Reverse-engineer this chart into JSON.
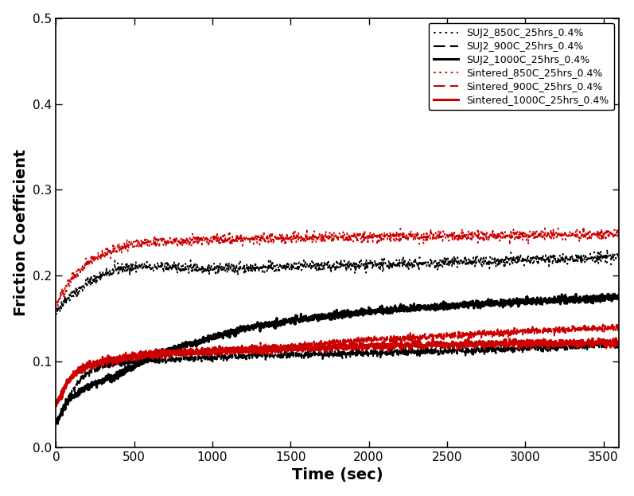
{
  "xlabel": "Time (sec)",
  "ylabel": "Friction Coefficient",
  "xlim": [
    0,
    3600
  ],
  "ylim": [
    0.0,
    0.5
  ],
  "xticks": [
    0,
    500,
    1000,
    1500,
    2000,
    2500,
    3000,
    3500
  ],
  "yticks": [
    0.0,
    0.1,
    0.2,
    0.3,
    0.4,
    0.5
  ],
  "legend_fontsize": 9,
  "axis_fontsize": 14,
  "tick_fontsize": 11,
  "background_color": "#ffffff",
  "series": [
    {
      "label": "SUJ2_850C_25hrs_0.4%",
      "color": "#000000",
      "linestyle": "dotted",
      "linewidth": 1.3,
      "points": [
        [
          0,
          0.155
        ],
        [
          30,
          0.165
        ],
        [
          60,
          0.172
        ],
        [
          100,
          0.178
        ],
        [
          150,
          0.183
        ],
        [
          200,
          0.192
        ],
        [
          300,
          0.2
        ],
        [
          400,
          0.208
        ],
        [
          500,
          0.21
        ],
        [
          700,
          0.21
        ],
        [
          1000,
          0.208
        ],
        [
          1500,
          0.21
        ],
        [
          2000,
          0.212
        ],
        [
          2500,
          0.215
        ],
        [
          3000,
          0.218
        ],
        [
          3600,
          0.222
        ]
      ],
      "noise": 0.003
    },
    {
      "label": "SUJ2_900C_25hrs_0.4%",
      "color": "#000000",
      "linestyle": "dashed",
      "linewidth": 1.5,
      "points": [
        [
          0,
          0.03
        ],
        [
          30,
          0.038
        ],
        [
          60,
          0.05
        ],
        [
          100,
          0.065
        ],
        [
          150,
          0.078
        ],
        [
          200,
          0.087
        ],
        [
          300,
          0.095
        ],
        [
          400,
          0.098
        ],
        [
          500,
          0.1
        ],
        [
          700,
          0.102
        ],
        [
          1000,
          0.105
        ],
        [
          1500,
          0.108
        ],
        [
          2000,
          0.11
        ],
        [
          2500,
          0.112
        ],
        [
          3000,
          0.115
        ],
        [
          3600,
          0.12
        ]
      ],
      "noise": 0.002
    },
    {
      "label": "SUJ2_1000C_25hrs_0.4%",
      "color": "#000000",
      "linestyle": "solid",
      "linewidth": 2.2,
      "points": [
        [
          0,
          0.03
        ],
        [
          30,
          0.038
        ],
        [
          60,
          0.05
        ],
        [
          100,
          0.058
        ],
        [
          150,
          0.065
        ],
        [
          200,
          0.07
        ],
        [
          300,
          0.078
        ],
        [
          400,
          0.085
        ],
        [
          500,
          0.095
        ],
        [
          600,
          0.105
        ],
        [
          700,
          0.112
        ],
        [
          800,
          0.118
        ],
        [
          900,
          0.122
        ],
        [
          1000,
          0.128
        ],
        [
          1200,
          0.138
        ],
        [
          1500,
          0.148
        ],
        [
          2000,
          0.158
        ],
        [
          2500,
          0.165
        ],
        [
          3000,
          0.17
        ],
        [
          3600,
          0.175
        ]
      ],
      "noise": 0.002
    },
    {
      "label": "Sintered_850C_25hrs_0.4%",
      "color": "#cc0000",
      "linestyle": "dotted",
      "linewidth": 1.3,
      "points": [
        [
          0,
          0.165
        ],
        [
          30,
          0.175
        ],
        [
          60,
          0.185
        ],
        [
          100,
          0.195
        ],
        [
          150,
          0.205
        ],
        [
          200,
          0.215
        ],
        [
          300,
          0.225
        ],
        [
          400,
          0.232
        ],
        [
          500,
          0.237
        ],
        [
          700,
          0.24
        ],
        [
          1000,
          0.242
        ],
        [
          1500,
          0.244
        ],
        [
          2000,
          0.245
        ],
        [
          2500,
          0.246
        ],
        [
          3000,
          0.247
        ],
        [
          3600,
          0.248
        ]
      ],
      "noise": 0.003
    },
    {
      "label": "Sintered_900C_25hrs_0.4%",
      "color": "#cc0000",
      "linestyle": "dashed",
      "linewidth": 1.5,
      "points": [
        [
          0,
          0.048
        ],
        [
          30,
          0.058
        ],
        [
          60,
          0.07
        ],
        [
          100,
          0.082
        ],
        [
          150,
          0.09
        ],
        [
          200,
          0.095
        ],
        [
          300,
          0.1
        ],
        [
          400,
          0.103
        ],
        [
          500,
          0.105
        ],
        [
          700,
          0.108
        ],
        [
          1000,
          0.112
        ],
        [
          1500,
          0.118
        ],
        [
          2000,
          0.125
        ],
        [
          2500,
          0.13
        ],
        [
          3000,
          0.135
        ],
        [
          3600,
          0.14
        ]
      ],
      "noise": 0.002
    },
    {
      "label": "Sintered_1000C_25hrs_0.4%",
      "color": "#cc0000",
      "linestyle": "solid",
      "linewidth": 2.2,
      "points": [
        [
          0,
          0.05
        ],
        [
          30,
          0.06
        ],
        [
          60,
          0.072
        ],
        [
          100,
          0.083
        ],
        [
          150,
          0.09
        ],
        [
          200,
          0.095
        ],
        [
          300,
          0.1
        ],
        [
          400,
          0.103
        ],
        [
          500,
          0.107
        ],
        [
          700,
          0.11
        ],
        [
          1000,
          0.112
        ],
        [
          1500,
          0.115
        ],
        [
          2000,
          0.118
        ],
        [
          2500,
          0.12
        ],
        [
          3000,
          0.121
        ],
        [
          3600,
          0.122
        ]
      ],
      "noise": 0.002
    }
  ]
}
